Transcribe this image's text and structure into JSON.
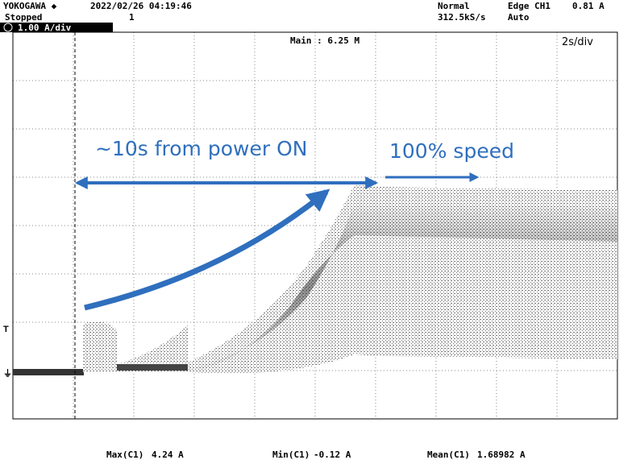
{
  "header": {
    "brand": "YOKOGAWA ◆",
    "timestamp": "2022/02/26 04:19:46",
    "status": "Stopped",
    "channel_marker": "1",
    "mode": "Normal",
    "sample_rate": "312.5kS/s",
    "trigger": "Edge CH1",
    "trigger_level": "0.81 A",
    "trigger_mode": "Auto",
    "channel_scale": "1.00 A/div"
  },
  "screen": {
    "record": "Main : 6.25 M",
    "timebase": "2s/div"
  },
  "annotations": {
    "startup": "~10s from power ON",
    "full_speed": "100% speed"
  },
  "measurements": [
    {
      "label": "Max(C1)",
      "value": "4.24 A"
    },
    {
      "label": "Min(C1)",
      "value": "-0.12 A"
    },
    {
      "label": "Mean(C1)",
      "value": "1.68982 A"
    }
  ]
}
